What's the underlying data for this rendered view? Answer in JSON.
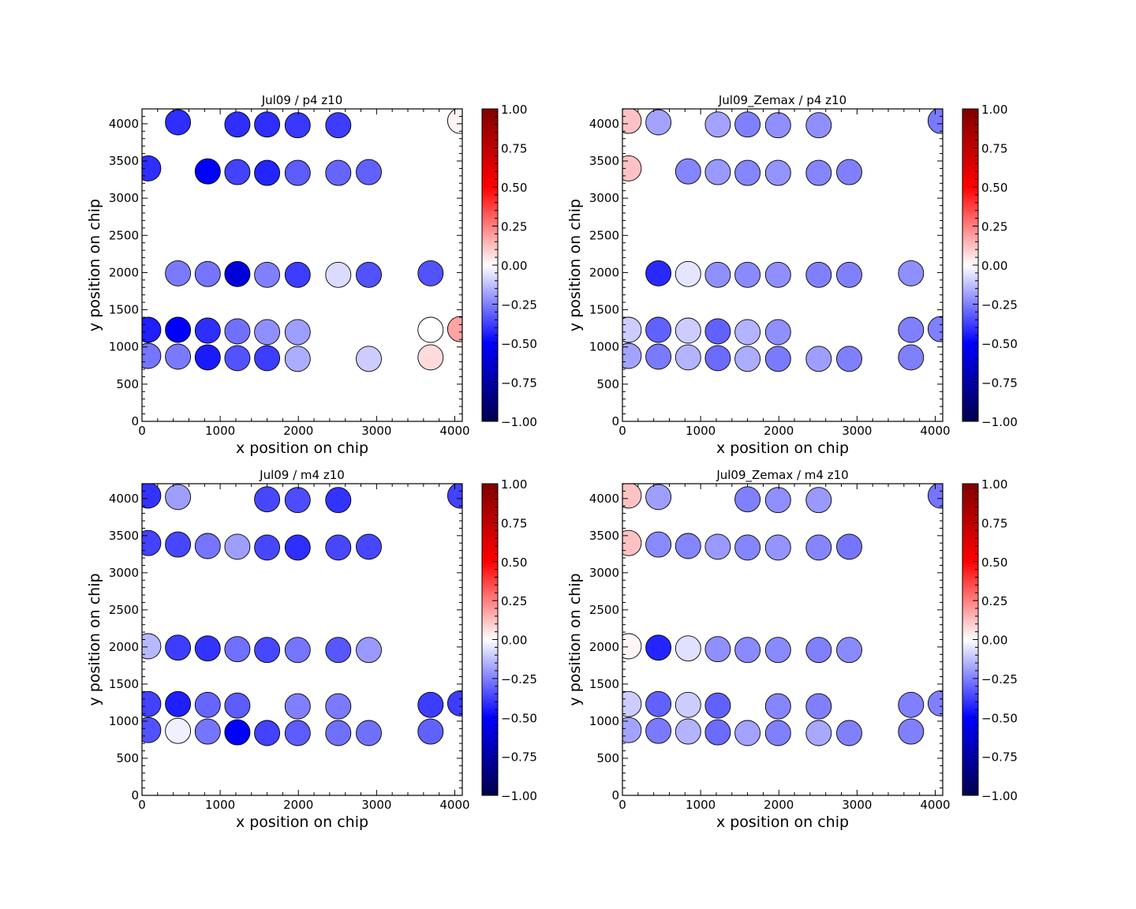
{
  "figure": {
    "colorbar": {
      "colormap": "seismic",
      "vmin": -1.0,
      "vmax": 1.0,
      "tick_labels": [
        "1.00",
        "0.75",
        "0.50",
        "0.25",
        "0.00",
        "−0.25",
        "−0.50",
        "−0.75",
        "−1.00"
      ],
      "tick_values": [
        1.0,
        0.75,
        0.5,
        0.25,
        0.0,
        -0.25,
        -0.5,
        -0.75,
        -1.0
      ]
    }
  },
  "chart_data": [
    {
      "type": "scatter",
      "title": "Jul09 / p4 z10",
      "xlabel": "x position on chip",
      "ylabel": "y position on chip",
      "xlim": [
        0,
        4096
      ],
      "ylim": [
        0,
        4200
      ],
      "xticks": [
        "0",
        "1000",
        "2000",
        "3000",
        "4000"
      ],
      "yticks": [
        "0",
        "500",
        "1000",
        "1500",
        "2000",
        "2500",
        "3000",
        "3500",
        "4000"
      ],
      "color_scale": [
        -1.0,
        1.0
      ],
      "points": [
        {
          "x": 460,
          "y": 4020,
          "v": -0.41
        },
        {
          "x": 1220,
          "y": 3990,
          "v": -0.41
        },
        {
          "x": 1600,
          "y": 3990,
          "v": -0.41
        },
        {
          "x": 1990,
          "y": 3980,
          "v": -0.39
        },
        {
          "x": 2510,
          "y": 3980,
          "v": -0.38
        },
        {
          "x": 4070,
          "y": 4040,
          "v": 0.02
        },
        {
          "x": 80,
          "y": 3400,
          "v": -0.41
        },
        {
          "x": 840,
          "y": 3360,
          "v": -0.5
        },
        {
          "x": 1220,
          "y": 3350,
          "v": -0.37
        },
        {
          "x": 1600,
          "y": 3340,
          "v": -0.43
        },
        {
          "x": 1990,
          "y": 3340,
          "v": -0.32
        },
        {
          "x": 2510,
          "y": 3340,
          "v": -0.3
        },
        {
          "x": 2900,
          "y": 3350,
          "v": -0.31
        },
        {
          "x": 460,
          "y": 1990,
          "v": -0.26
        },
        {
          "x": 840,
          "y": 1980,
          "v": -0.27
        },
        {
          "x": 1220,
          "y": 1980,
          "v": -0.6
        },
        {
          "x": 1600,
          "y": 1970,
          "v": -0.25
        },
        {
          "x": 1990,
          "y": 1970,
          "v": -0.38
        },
        {
          "x": 2510,
          "y": 1970,
          "v": -0.07
        },
        {
          "x": 2900,
          "y": 1970,
          "v": -0.34
        },
        {
          "x": 3690,
          "y": 1990,
          "v": -0.34
        },
        {
          "x": 80,
          "y": 1230,
          "v": -0.44
        },
        {
          "x": 460,
          "y": 1230,
          "v": -0.5
        },
        {
          "x": 840,
          "y": 1220,
          "v": -0.41
        },
        {
          "x": 1220,
          "y": 1210,
          "v": -0.28
        },
        {
          "x": 1600,
          "y": 1200,
          "v": -0.22
        },
        {
          "x": 1990,
          "y": 1200,
          "v": -0.19
        },
        {
          "x": 3690,
          "y": 1230,
          "v": 0.0
        },
        {
          "x": 4070,
          "y": 1240,
          "v": 0.18
        },
        {
          "x": 80,
          "y": 880,
          "v": -0.27
        },
        {
          "x": 460,
          "y": 870,
          "v": -0.26
        },
        {
          "x": 840,
          "y": 860,
          "v": -0.45
        },
        {
          "x": 1220,
          "y": 850,
          "v": -0.34
        },
        {
          "x": 1600,
          "y": 850,
          "v": -0.38
        },
        {
          "x": 1990,
          "y": 840,
          "v": -0.16
        },
        {
          "x": 2900,
          "y": 840,
          "v": -0.1
        },
        {
          "x": 3690,
          "y": 860,
          "v": 0.07
        }
      ]
    },
    {
      "type": "scatter",
      "title": "Jul09_Zemax / p4 z10",
      "xlabel": "x position on chip",
      "ylabel": "y position on chip",
      "xlim": [
        0,
        4096
      ],
      "ylim": [
        0,
        4200
      ],
      "xticks": [
        "0",
        "1000",
        "2000",
        "3000",
        "4000"
      ],
      "yticks": [
        "0",
        "500",
        "1000",
        "1500",
        "2000",
        "2500",
        "3000",
        "3500",
        "4000"
      ],
      "color_scale": [
        -1.0,
        1.0
      ],
      "points": [
        {
          "x": 80,
          "y": 4040,
          "v": 0.12
        },
        {
          "x": 460,
          "y": 4020,
          "v": -0.18
        },
        {
          "x": 1220,
          "y": 3990,
          "v": -0.18
        },
        {
          "x": 1600,
          "y": 3990,
          "v": -0.25
        },
        {
          "x": 1990,
          "y": 3980,
          "v": -0.22
        },
        {
          "x": 2510,
          "y": 3980,
          "v": -0.22
        },
        {
          "x": 4070,
          "y": 4040,
          "v": -0.26
        },
        {
          "x": 80,
          "y": 3400,
          "v": 0.12
        },
        {
          "x": 840,
          "y": 3360,
          "v": -0.24
        },
        {
          "x": 1220,
          "y": 3350,
          "v": -0.2
        },
        {
          "x": 1600,
          "y": 3340,
          "v": -0.24
        },
        {
          "x": 1990,
          "y": 3340,
          "v": -0.21
        },
        {
          "x": 2510,
          "y": 3340,
          "v": -0.24
        },
        {
          "x": 2900,
          "y": 3350,
          "v": -0.25
        },
        {
          "x": 460,
          "y": 1990,
          "v": -0.42
        },
        {
          "x": 840,
          "y": 1980,
          "v": -0.05
        },
        {
          "x": 1220,
          "y": 1970,
          "v": -0.22
        },
        {
          "x": 1600,
          "y": 1970,
          "v": -0.23
        },
        {
          "x": 1990,
          "y": 1970,
          "v": -0.22
        },
        {
          "x": 2510,
          "y": 1970,
          "v": -0.25
        },
        {
          "x": 2900,
          "y": 1970,
          "v": -0.25
        },
        {
          "x": 3690,
          "y": 1990,
          "v": -0.22
        },
        {
          "x": 80,
          "y": 1230,
          "v": -0.1
        },
        {
          "x": 460,
          "y": 1230,
          "v": -0.31
        },
        {
          "x": 840,
          "y": 1220,
          "v": -0.1
        },
        {
          "x": 1220,
          "y": 1210,
          "v": -0.31
        },
        {
          "x": 1600,
          "y": 1200,
          "v": -0.15
        },
        {
          "x": 1990,
          "y": 1200,
          "v": -0.22
        },
        {
          "x": 3690,
          "y": 1230,
          "v": -0.25
        },
        {
          "x": 4070,
          "y": 1240,
          "v": -0.25
        },
        {
          "x": 80,
          "y": 880,
          "v": -0.18
        },
        {
          "x": 460,
          "y": 870,
          "v": -0.26
        },
        {
          "x": 840,
          "y": 860,
          "v": -0.15
        },
        {
          "x": 1220,
          "y": 850,
          "v": -0.29
        },
        {
          "x": 1600,
          "y": 840,
          "v": -0.16
        },
        {
          "x": 1990,
          "y": 840,
          "v": -0.26
        },
        {
          "x": 2510,
          "y": 840,
          "v": -0.19
        },
        {
          "x": 2900,
          "y": 840,
          "v": -0.25
        },
        {
          "x": 3690,
          "y": 860,
          "v": -0.25
        }
      ]
    },
    {
      "type": "scatter",
      "title": "Jul09 / m4 z10",
      "xlabel": "x position on chip",
      "ylabel": "y position on chip",
      "xlim": [
        0,
        4096
      ],
      "ylim": [
        0,
        4200
      ],
      "xticks": [
        "0",
        "1000",
        "2000",
        "3000",
        "4000"
      ],
      "yticks": [
        "0",
        "500",
        "1000",
        "1500",
        "2000",
        "2500",
        "3000",
        "3500",
        "4000"
      ],
      "color_scale": [
        -1.0,
        1.0
      ],
      "points": [
        {
          "x": 80,
          "y": 4040,
          "v": -0.4
        },
        {
          "x": 460,
          "y": 4020,
          "v": -0.19
        },
        {
          "x": 1600,
          "y": 3990,
          "v": -0.36
        },
        {
          "x": 1990,
          "y": 3980,
          "v": -0.35
        },
        {
          "x": 2510,
          "y": 3980,
          "v": -0.4
        },
        {
          "x": 4070,
          "y": 4040,
          "v": -0.37
        },
        {
          "x": 80,
          "y": 3400,
          "v": -0.37
        },
        {
          "x": 460,
          "y": 3380,
          "v": -0.36
        },
        {
          "x": 840,
          "y": 3360,
          "v": -0.27
        },
        {
          "x": 1220,
          "y": 3350,
          "v": -0.19
        },
        {
          "x": 1600,
          "y": 3340,
          "v": -0.36
        },
        {
          "x": 1990,
          "y": 3340,
          "v": -0.41
        },
        {
          "x": 2510,
          "y": 3340,
          "v": -0.36
        },
        {
          "x": 2900,
          "y": 3350,
          "v": -0.36
        },
        {
          "x": 80,
          "y": 2010,
          "v": -0.14
        },
        {
          "x": 460,
          "y": 1990,
          "v": -0.38
        },
        {
          "x": 840,
          "y": 1980,
          "v": -0.4
        },
        {
          "x": 1220,
          "y": 1970,
          "v": -0.28
        },
        {
          "x": 1600,
          "y": 1960,
          "v": -0.36
        },
        {
          "x": 1990,
          "y": 1960,
          "v": -0.27
        },
        {
          "x": 2510,
          "y": 1960,
          "v": -0.33
        },
        {
          "x": 2900,
          "y": 1960,
          "v": -0.2
        },
        {
          "x": 80,
          "y": 1230,
          "v": -0.37
        },
        {
          "x": 460,
          "y": 1230,
          "v": -0.44
        },
        {
          "x": 840,
          "y": 1220,
          "v": -0.3
        },
        {
          "x": 1220,
          "y": 1210,
          "v": -0.32
        },
        {
          "x": 1990,
          "y": 1200,
          "v": -0.25
        },
        {
          "x": 2510,
          "y": 1200,
          "v": -0.26
        },
        {
          "x": 3690,
          "y": 1220,
          "v": -0.38
        },
        {
          "x": 4070,
          "y": 1240,
          "v": -0.38
        },
        {
          "x": 80,
          "y": 880,
          "v": -0.34
        },
        {
          "x": 460,
          "y": 870,
          "v": -0.03
        },
        {
          "x": 840,
          "y": 860,
          "v": -0.27
        },
        {
          "x": 1220,
          "y": 850,
          "v": -0.5
        },
        {
          "x": 1600,
          "y": 840,
          "v": -0.37
        },
        {
          "x": 1990,
          "y": 840,
          "v": -0.32
        },
        {
          "x": 2510,
          "y": 840,
          "v": -0.28
        },
        {
          "x": 2900,
          "y": 840,
          "v": -0.28
        },
        {
          "x": 3690,
          "y": 860,
          "v": -0.31
        }
      ]
    },
    {
      "type": "scatter",
      "title": "Jul09_Zemax / m4 z10",
      "xlabel": "x position on chip",
      "ylabel": "y position on chip",
      "xlim": [
        0,
        4096
      ],
      "ylim": [
        0,
        4200
      ],
      "xticks": [
        "0",
        "1000",
        "2000",
        "3000",
        "4000"
      ],
      "yticks": [
        "0",
        "500",
        "1000",
        "1500",
        "2000",
        "2500",
        "3000",
        "3500",
        "4000"
      ],
      "color_scale": [
        -1.0,
        1.0
      ],
      "points": [
        {
          "x": 80,
          "y": 4040,
          "v": 0.12
        },
        {
          "x": 460,
          "y": 4020,
          "v": -0.19
        },
        {
          "x": 1600,
          "y": 3990,
          "v": -0.25
        },
        {
          "x": 1990,
          "y": 3980,
          "v": -0.22
        },
        {
          "x": 2510,
          "y": 3980,
          "v": -0.2
        },
        {
          "x": 4070,
          "y": 4040,
          "v": -0.27
        },
        {
          "x": 80,
          "y": 3400,
          "v": 0.12
        },
        {
          "x": 460,
          "y": 3380,
          "v": -0.23
        },
        {
          "x": 840,
          "y": 3360,
          "v": -0.24
        },
        {
          "x": 1220,
          "y": 3350,
          "v": -0.2
        },
        {
          "x": 1600,
          "y": 3340,
          "v": -0.24
        },
        {
          "x": 1990,
          "y": 3340,
          "v": -0.21
        },
        {
          "x": 2510,
          "y": 3340,
          "v": -0.24
        },
        {
          "x": 2900,
          "y": 3350,
          "v": -0.27
        },
        {
          "x": 80,
          "y": 2010,
          "v": 0.02
        },
        {
          "x": 460,
          "y": 1990,
          "v": -0.43
        },
        {
          "x": 840,
          "y": 1980,
          "v": -0.06
        },
        {
          "x": 1220,
          "y": 1970,
          "v": -0.22
        },
        {
          "x": 1600,
          "y": 1960,
          "v": -0.23
        },
        {
          "x": 1990,
          "y": 1960,
          "v": -0.23
        },
        {
          "x": 2510,
          "y": 1960,
          "v": -0.25
        },
        {
          "x": 2900,
          "y": 1960,
          "v": -0.23
        },
        {
          "x": 80,
          "y": 1230,
          "v": -0.1
        },
        {
          "x": 460,
          "y": 1230,
          "v": -0.31
        },
        {
          "x": 840,
          "y": 1220,
          "v": -0.1
        },
        {
          "x": 1220,
          "y": 1210,
          "v": -0.31
        },
        {
          "x": 1990,
          "y": 1200,
          "v": -0.24
        },
        {
          "x": 2510,
          "y": 1200,
          "v": -0.25
        },
        {
          "x": 3690,
          "y": 1220,
          "v": -0.25
        },
        {
          "x": 4070,
          "y": 1240,
          "v": -0.25
        },
        {
          "x": 80,
          "y": 880,
          "v": -0.18
        },
        {
          "x": 460,
          "y": 870,
          "v": -0.26
        },
        {
          "x": 840,
          "y": 860,
          "v": -0.15
        },
        {
          "x": 1220,
          "y": 850,
          "v": -0.29
        },
        {
          "x": 1600,
          "y": 840,
          "v": -0.18
        },
        {
          "x": 1990,
          "y": 840,
          "v": -0.25
        },
        {
          "x": 2510,
          "y": 840,
          "v": -0.17
        },
        {
          "x": 2900,
          "y": 840,
          "v": -0.25
        },
        {
          "x": 3690,
          "y": 860,
          "v": -0.25
        }
      ]
    }
  ]
}
